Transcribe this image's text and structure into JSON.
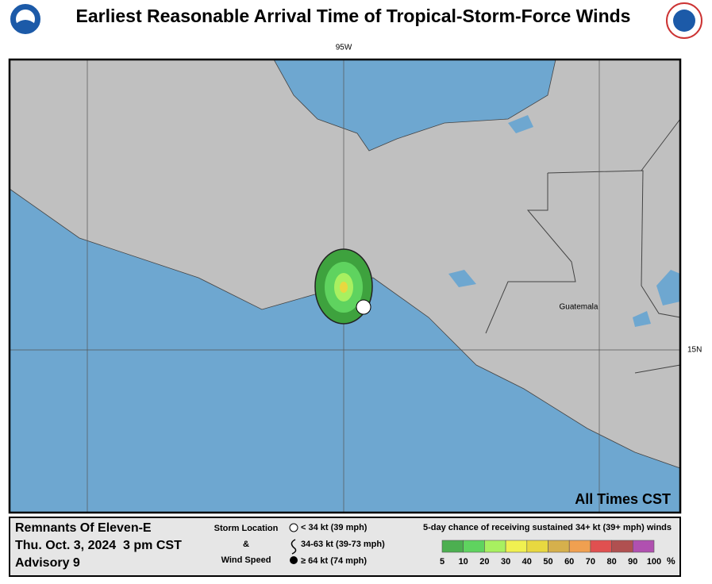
{
  "header": {
    "title": "Earliest Reasonable Arrival Time of Tropical-Storm-Force Winds"
  },
  "map": {
    "lon_label": "95W",
    "lat_label": "15N",
    "country": "Guatemala",
    "times_note": "All Times CST"
  },
  "info": {
    "storm": "Remnants Of Eleven-E",
    "date": "Thu. Oct. 3, 2024  3 pm CST",
    "advisory": "Advisory 9"
  },
  "storm_key": {
    "title_1": "Storm Location",
    "title_2": "&",
    "title_3": "Wind Speed",
    "items": [
      "< 34 kt (39 mph)",
      "34-63 kt (39-73 mph)",
      "≥ 64 kt (74 mph)"
    ]
  },
  "legend": {
    "title": "5-day chance of receiving sustained 34+ kt (39+ mph) winds",
    "unit": "%",
    "items": [
      {
        "label": "5",
        "color": "#4caf50"
      },
      {
        "label": "10",
        "color": "#5fd35f"
      },
      {
        "label": "20",
        "color": "#a8f060"
      },
      {
        "label": "30",
        "color": "#f0f050"
      },
      {
        "label": "40",
        "color": "#e8d840"
      },
      {
        "label": "50",
        "color": "#d6b04c"
      },
      {
        "label": "60",
        "color": "#f0a050"
      },
      {
        "label": "70",
        "color": "#e05050"
      },
      {
        "label": "80",
        "color": "#b05050"
      },
      {
        "label": "90",
        "color": "#b050b0"
      },
      {
        "label": "100",
        "color": null
      }
    ]
  }
}
